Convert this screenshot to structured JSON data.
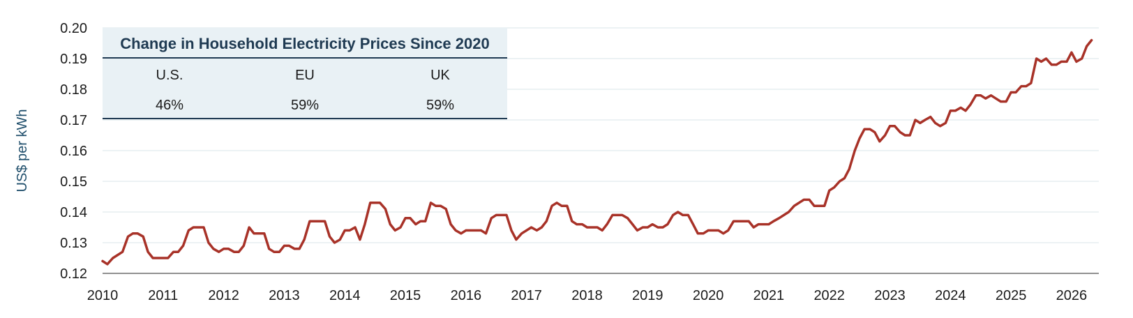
{
  "chart_data": {
    "type": "line",
    "title": "",
    "xlabel": "",
    "ylabel": "US$ per kWh",
    "xlim": [
      2010,
      2026.45
    ],
    "ylim": [
      0.12,
      0.2
    ],
    "yticks": [
      "0.12",
      "0.13",
      "0.14",
      "0.15",
      "0.16",
      "0.17",
      "0.18",
      "0.19",
      "0.20"
    ],
    "xticks": [
      "2010",
      "2011",
      "2012",
      "2013",
      "2014",
      "2015",
      "2016",
      "2017",
      "2018",
      "2019",
      "2020",
      "2021",
      "2022",
      "2023",
      "2024",
      "2025",
      "2026"
    ],
    "grid": true,
    "series": [
      {
        "color": "#a83228",
        "points": [
          [
            2010.0,
            0.124
          ],
          [
            2010.08,
            0.123
          ],
          [
            2010.17,
            0.125
          ],
          [
            2010.25,
            0.126
          ],
          [
            2010.33,
            0.127
          ],
          [
            2010.42,
            0.132
          ],
          [
            2010.5,
            0.133
          ],
          [
            2010.58,
            0.133
          ],
          [
            2010.67,
            0.132
          ],
          [
            2010.75,
            0.127
          ],
          [
            2010.83,
            0.125
          ],
          [
            2010.92,
            0.125
          ],
          [
            2011.0,
            0.125
          ],
          [
            2011.08,
            0.125
          ],
          [
            2011.17,
            0.127
          ],
          [
            2011.25,
            0.127
          ],
          [
            2011.33,
            0.129
          ],
          [
            2011.42,
            0.134
          ],
          [
            2011.5,
            0.135
          ],
          [
            2011.58,
            0.135
          ],
          [
            2011.67,
            0.135
          ],
          [
            2011.75,
            0.13
          ],
          [
            2011.83,
            0.128
          ],
          [
            2011.92,
            0.127
          ],
          [
            2012.0,
            0.128
          ],
          [
            2012.08,
            0.128
          ],
          [
            2012.17,
            0.127
          ],
          [
            2012.25,
            0.127
          ],
          [
            2012.33,
            0.129
          ],
          [
            2012.42,
            0.135
          ],
          [
            2012.5,
            0.133
          ],
          [
            2012.58,
            0.133
          ],
          [
            2012.67,
            0.133
          ],
          [
            2012.75,
            0.128
          ],
          [
            2012.83,
            0.127
          ],
          [
            2012.92,
            0.127
          ],
          [
            2013.0,
            0.129
          ],
          [
            2013.08,
            0.129
          ],
          [
            2013.17,
            0.128
          ],
          [
            2013.25,
            0.128
          ],
          [
            2013.33,
            0.131
          ],
          [
            2013.42,
            0.137
          ],
          [
            2013.5,
            0.137
          ],
          [
            2013.58,
            0.137
          ],
          [
            2013.67,
            0.137
          ],
          [
            2013.75,
            0.132
          ],
          [
            2013.83,
            0.13
          ],
          [
            2013.92,
            0.131
          ],
          [
            2014.0,
            0.134
          ],
          [
            2014.08,
            0.134
          ],
          [
            2014.17,
            0.135
          ],
          [
            2014.25,
            0.131
          ],
          [
            2014.33,
            0.136
          ],
          [
            2014.42,
            0.143
          ],
          [
            2014.5,
            0.143
          ],
          [
            2014.58,
            0.143
          ],
          [
            2014.67,
            0.141
          ],
          [
            2014.75,
            0.136
          ],
          [
            2014.83,
            0.134
          ],
          [
            2014.92,
            0.135
          ],
          [
            2015.0,
            0.138
          ],
          [
            2015.08,
            0.138
          ],
          [
            2015.17,
            0.136
          ],
          [
            2015.25,
            0.137
          ],
          [
            2015.33,
            0.137
          ],
          [
            2015.42,
            0.143
          ],
          [
            2015.5,
            0.142
          ],
          [
            2015.58,
            0.142
          ],
          [
            2015.67,
            0.141
          ],
          [
            2015.75,
            0.136
          ],
          [
            2015.83,
            0.134
          ],
          [
            2015.92,
            0.133
          ],
          [
            2016.0,
            0.134
          ],
          [
            2016.08,
            0.134
          ],
          [
            2016.17,
            0.134
          ],
          [
            2016.25,
            0.134
          ],
          [
            2016.33,
            0.133
          ],
          [
            2016.42,
            0.138
          ],
          [
            2016.5,
            0.139
          ],
          [
            2016.58,
            0.139
          ],
          [
            2016.67,
            0.139
          ],
          [
            2016.75,
            0.134
          ],
          [
            2016.83,
            0.131
          ],
          [
            2016.92,
            0.133
          ],
          [
            2017.0,
            0.134
          ],
          [
            2017.08,
            0.135
          ],
          [
            2017.17,
            0.134
          ],
          [
            2017.25,
            0.135
          ],
          [
            2017.33,
            0.137
          ],
          [
            2017.42,
            0.142
          ],
          [
            2017.5,
            0.143
          ],
          [
            2017.58,
            0.142
          ],
          [
            2017.67,
            0.142
          ],
          [
            2017.75,
            0.137
          ],
          [
            2017.83,
            0.136
          ],
          [
            2017.92,
            0.136
          ],
          [
            2018.0,
            0.135
          ],
          [
            2018.08,
            0.135
          ],
          [
            2018.17,
            0.135
          ],
          [
            2018.25,
            0.134
          ],
          [
            2018.33,
            0.136
          ],
          [
            2018.42,
            0.139
          ],
          [
            2018.5,
            0.139
          ],
          [
            2018.58,
            0.139
          ],
          [
            2018.67,
            0.138
          ],
          [
            2018.75,
            0.136
          ],
          [
            2018.83,
            0.134
          ],
          [
            2018.92,
            0.135
          ],
          [
            2019.0,
            0.135
          ],
          [
            2019.08,
            0.136
          ],
          [
            2019.17,
            0.135
          ],
          [
            2019.25,
            0.135
          ],
          [
            2019.33,
            0.136
          ],
          [
            2019.42,
            0.139
          ],
          [
            2019.5,
            0.14
          ],
          [
            2019.58,
            0.139
          ],
          [
            2019.67,
            0.139
          ],
          [
            2019.75,
            0.136
          ],
          [
            2019.83,
            0.133
          ],
          [
            2019.92,
            0.133
          ],
          [
            2020.0,
            0.134
          ],
          [
            2020.08,
            0.134
          ],
          [
            2020.17,
            0.134
          ],
          [
            2020.25,
            0.133
          ],
          [
            2020.33,
            0.134
          ],
          [
            2020.42,
            0.137
          ],
          [
            2020.5,
            0.137
          ],
          [
            2020.58,
            0.137
          ],
          [
            2020.67,
            0.137
          ],
          [
            2020.75,
            0.135
          ],
          [
            2020.83,
            0.136
          ],
          [
            2020.92,
            0.136
          ],
          [
            2021.0,
            0.136
          ],
          [
            2021.08,
            0.137
          ],
          [
            2021.17,
            0.138
          ],
          [
            2021.25,
            0.139
          ],
          [
            2021.33,
            0.14
          ],
          [
            2021.42,
            0.142
          ],
          [
            2021.5,
            0.143
          ],
          [
            2021.58,
            0.144
          ],
          [
            2021.67,
            0.144
          ],
          [
            2021.75,
            0.142
          ],
          [
            2021.83,
            0.142
          ],
          [
            2021.92,
            0.142
          ],
          [
            2022.0,
            0.147
          ],
          [
            2022.08,
            0.148
          ],
          [
            2022.17,
            0.15
          ],
          [
            2022.25,
            0.151
          ],
          [
            2022.33,
            0.154
          ],
          [
            2022.42,
            0.16
          ],
          [
            2022.5,
            0.164
          ],
          [
            2022.58,
            0.167
          ],
          [
            2022.67,
            0.167
          ],
          [
            2022.75,
            0.166
          ],
          [
            2022.83,
            0.163
          ],
          [
            2022.92,
            0.165
          ],
          [
            2023.0,
            0.168
          ],
          [
            2023.08,
            0.168
          ],
          [
            2023.17,
            0.166
          ],
          [
            2023.25,
            0.165
          ],
          [
            2023.33,
            0.165
          ],
          [
            2023.42,
            0.17
          ],
          [
            2023.5,
            0.169
          ],
          [
            2023.58,
            0.17
          ],
          [
            2023.67,
            0.171
          ],
          [
            2023.75,
            0.169
          ],
          [
            2023.83,
            0.168
          ],
          [
            2023.92,
            0.169
          ],
          [
            2024.0,
            0.173
          ],
          [
            2024.08,
            0.173
          ],
          [
            2024.17,
            0.174
          ],
          [
            2024.25,
            0.173
          ],
          [
            2024.33,
            0.175
          ],
          [
            2024.42,
            0.178
          ],
          [
            2024.5,
            0.178
          ],
          [
            2024.58,
            0.177
          ],
          [
            2024.67,
            0.178
          ],
          [
            2024.75,
            0.177
          ],
          [
            2024.83,
            0.176
          ],
          [
            2024.92,
            0.176
          ],
          [
            2025.0,
            0.179
          ],
          [
            2025.08,
            0.179
          ],
          [
            2025.17,
            0.181
          ],
          [
            2025.25,
            0.181
          ],
          [
            2025.33,
            0.182
          ],
          [
            2025.42,
            0.19
          ],
          [
            2025.5,
            0.189
          ],
          [
            2025.58,
            0.19
          ],
          [
            2025.67,
            0.188
          ],
          [
            2025.75,
            0.188
          ],
          [
            2025.83,
            0.189
          ],
          [
            2025.92,
            0.189
          ],
          [
            2026.0,
            0.192
          ],
          [
            2026.08,
            0.189
          ],
          [
            2026.17,
            0.19
          ],
          [
            2026.25,
            0.194
          ],
          [
            2026.33,
            0.196
          ]
        ]
      }
    ]
  },
  "inset_table": {
    "title": "Change in Household Electricity Prices Since 2020",
    "headers": [
      "U.S.",
      "EU",
      "UK"
    ],
    "values": [
      "46%",
      "59%",
      "59%"
    ]
  },
  "colors": {
    "line": "#a83228",
    "inset_bg": "#e9f1f5",
    "inset_rule": "#1f3a52",
    "grid": "#d9e4ea"
  }
}
